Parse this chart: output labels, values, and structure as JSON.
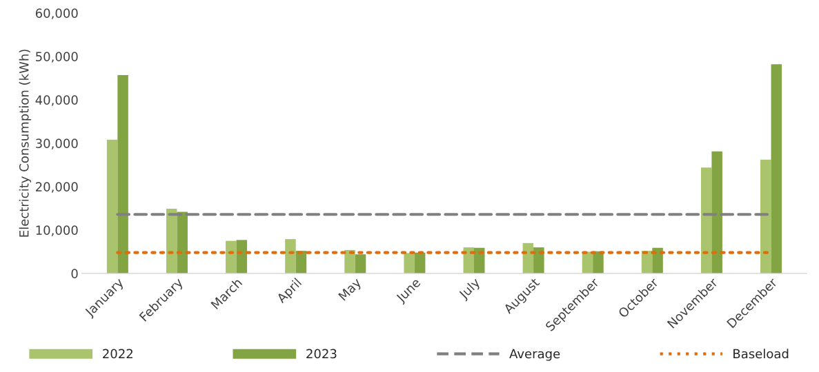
{
  "chart_data": {
    "type": "bar",
    "ylabel": "Electricity Consumption (kWh)",
    "categories": [
      "January",
      "February",
      "March",
      "April",
      "May",
      "June",
      "July",
      "August",
      "September",
      "October",
      "November",
      "December"
    ],
    "series": [
      {
        "name": "2022",
        "color": "#a9c46c",
        "values": [
          30800,
          14900,
          7500,
          7900,
          5400,
          4700,
          6000,
          7000,
          5000,
          5200,
          24400,
          26200
        ]
      },
      {
        "name": "2023",
        "color": "#82a442",
        "values": [
          45700,
          14200,
          7700,
          5200,
          4400,
          4800,
          5900,
          6000,
          5100,
          5900,
          28100,
          48200
        ]
      },
      {
        "name": "Average",
        "type": "line",
        "color": "#808080",
        "line_style": "dashed",
        "values": [
          13600,
          13600,
          13600,
          13600,
          13600,
          13600,
          13600,
          13600,
          13600,
          13600,
          13600,
          13600
        ]
      },
      {
        "name": "Baseload",
        "type": "line",
        "color": "#e26b0a",
        "line_style": "dotted",
        "values": [
          4800,
          4800,
          4800,
          4800,
          4800,
          4800,
          4800,
          4800,
          4800,
          4800,
          4800,
          4800
        ]
      }
    ],
    "ylim": [
      0,
      60000
    ],
    "yticks": [
      {
        "value": 0,
        "label": "0"
      },
      {
        "value": 10000,
        "label": "10,000"
      },
      {
        "value": 20000,
        "label": "20,000"
      },
      {
        "value": 30000,
        "label": "30,000"
      },
      {
        "value": 40000,
        "label": "40,000"
      },
      {
        "value": 50000,
        "label": "50,000"
      },
      {
        "value": 60000,
        "label": "60,000"
      }
    ],
    "grid": false,
    "legend": "bottom"
  }
}
